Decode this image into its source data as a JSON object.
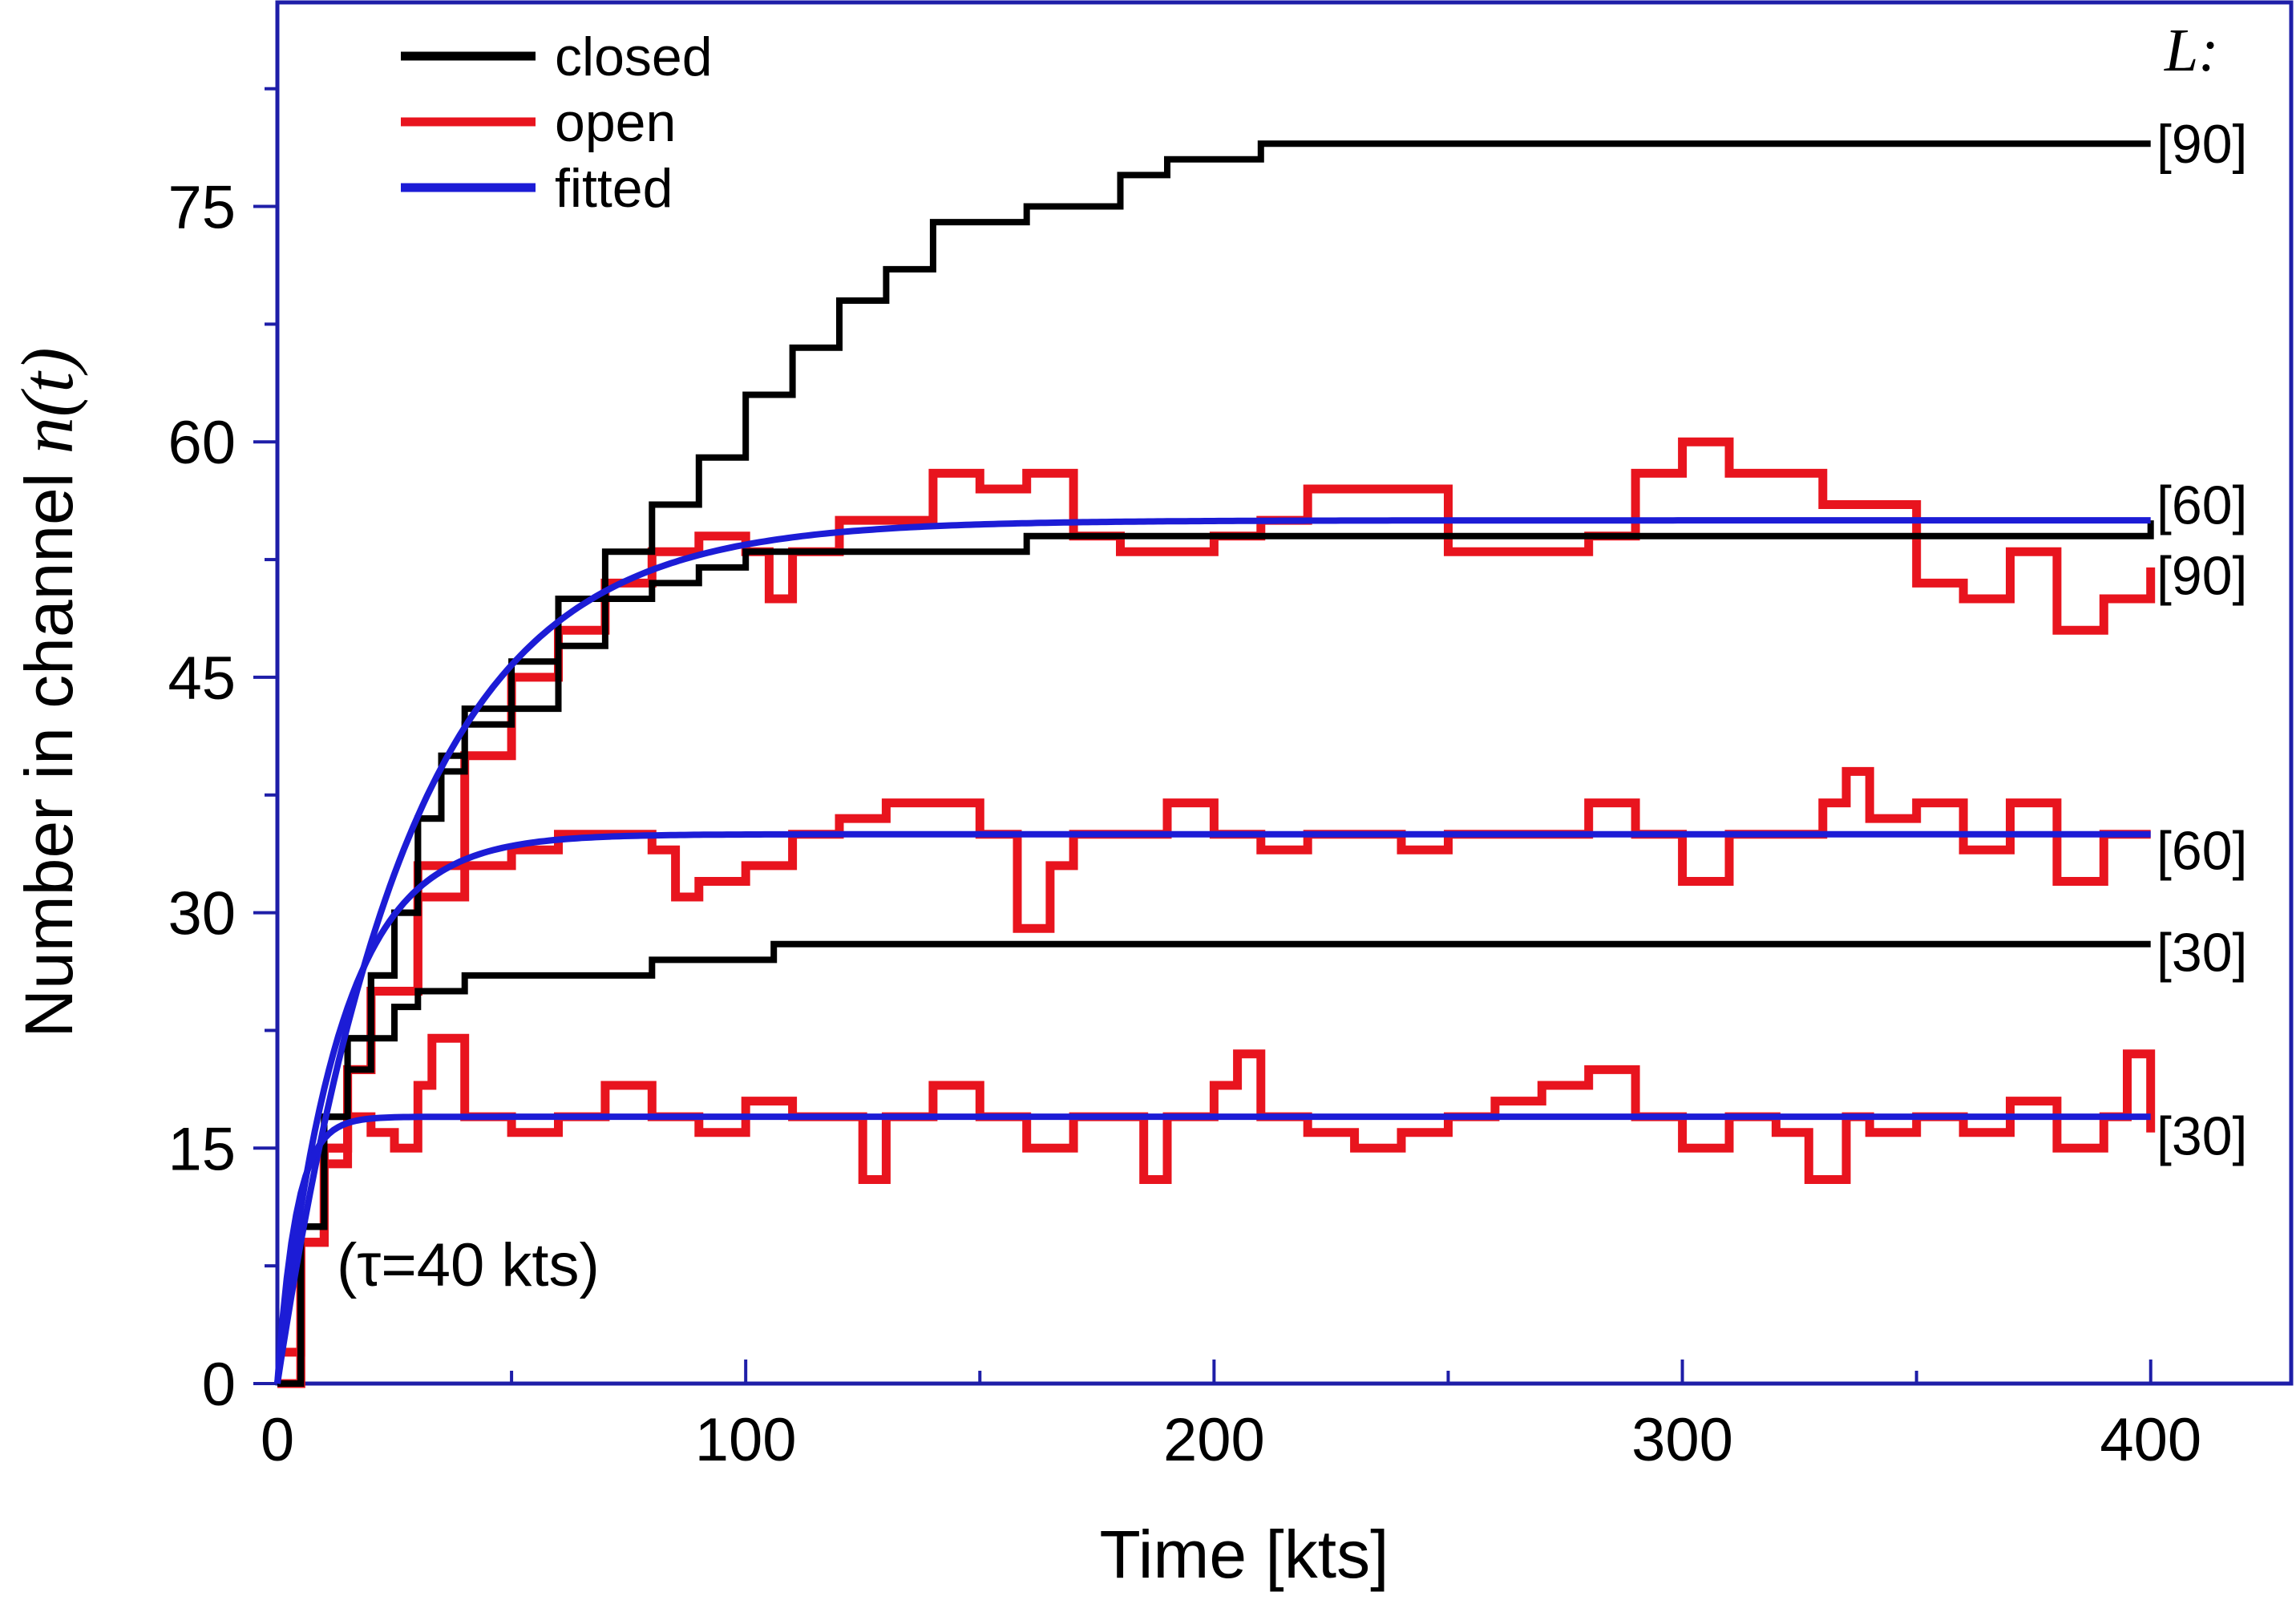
{
  "chart_data": {
    "type": "line",
    "title": "",
    "xlabel": "Time [kts]",
    "ylabel_prefix": "Number in channel ",
    "ylabel_math": "n(t)",
    "xlim": [
      0,
      430
    ],
    "ylim": [
      0,
      88
    ],
    "xticks": [
      0,
      100,
      200,
      300,
      400
    ],
    "xtick_labels": [
      "0",
      "100",
      "200",
      "300",
      "400"
    ],
    "yticks": [
      0,
      15,
      30,
      45,
      60,
      75
    ],
    "ytick_labels": [
      "0",
      "15",
      "30",
      "45",
      "60",
      "75"
    ],
    "annotation": "(τ=40 kts)",
    "labels_header": "L:",
    "grid": false,
    "legend_position": "top-left",
    "legend": [
      {
        "label": "closed",
        "color": "#000000"
      },
      {
        "label": "open",
        "color": "#e8141e"
      },
      {
        "label": "fitted",
        "color": "#1c1cd6"
      }
    ],
    "series": [
      {
        "name": "closed",
        "L": "[90]",
        "color": "#000000",
        "x": [
          0,
          5,
          10,
          15,
          20,
          25,
          30,
          35,
          40,
          50,
          60,
          70,
          80,
          90,
          100,
          110,
          120,
          130,
          140,
          150,
          160,
          170,
          180,
          190,
          200,
          210,
          400
        ],
        "y": [
          0,
          10,
          17,
          22,
          26,
          30,
          36,
          40,
          43,
          46,
          50,
          53,
          56,
          59,
          63,
          66,
          69,
          71,
          74,
          74,
          75,
          75,
          77,
          78,
          78,
          79,
          79
        ]
      },
      {
        "name": "closed",
        "L": "[60]",
        "color": "#000000",
        "x": [
          0,
          5,
          10,
          15,
          20,
          25,
          30,
          35,
          40,
          50,
          60,
          70,
          80,
          90,
          100,
          110,
          120,
          140,
          160,
          200,
          400
        ],
        "y": [
          0,
          10,
          17,
          22,
          26,
          30,
          36,
          39,
          42,
          43,
          47,
          50,
          51,
          52,
          53,
          53,
          53,
          53,
          54,
          54,
          55
        ]
      },
      {
        "name": "closed",
        "L": "[30]",
        "color": "#000000",
        "x": [
          0,
          5,
          10,
          15,
          20,
          25,
          30,
          40,
          60,
          80,
          100,
          106,
          400
        ],
        "y": [
          0,
          10,
          17,
          20,
          22,
          24,
          25,
          26,
          26,
          27,
          27,
          28,
          28
        ]
      },
      {
        "name": "open",
        "L": "[90]",
        "color": "#e8141e",
        "x": [
          0,
          5,
          10,
          15,
          20,
          30,
          40,
          50,
          60,
          70,
          80,
          90,
          100,
          105,
          110,
          120,
          130,
          140,
          150,
          160,
          170,
          180,
          190,
          200,
          210,
          220,
          230,
          240,
          250,
          260,
          270,
          280,
          290,
          300,
          310,
          320,
          330,
          340,
          350,
          360,
          370,
          380,
          390,
          400
        ],
        "y": [
          0,
          9,
          15,
          20,
          25,
          33,
          40,
          45,
          48,
          51,
          53,
          54,
          53,
          50,
          53,
          55,
          55,
          58,
          57,
          58,
          54,
          53,
          53,
          54,
          55,
          57,
          57,
          57,
          53,
          53,
          53,
          54,
          58,
          60,
          58,
          58,
          56,
          56,
          51,
          50,
          53,
          48,
          50,
          52
        ]
      },
      {
        "name": "open",
        "L": "[60]",
        "color": "#e8141e",
        "x": [
          0,
          5,
          10,
          15,
          20,
          30,
          40,
          50,
          60,
          70,
          80,
          85,
          90,
          100,
          110,
          120,
          130,
          140,
          150,
          158,
          165,
          170,
          180,
          190,
          200,
          210,
          220,
          230,
          240,
          250,
          260,
          270,
          280,
          290,
          300,
          310,
          320,
          330,
          335,
          340,
          350,
          360,
          370,
          380,
          390,
          400
        ],
        "y": [
          0,
          9,
          15,
          20,
          25,
          31,
          33,
          34,
          35,
          35,
          34,
          31,
          32,
          33,
          35,
          36,
          37,
          37,
          35,
          29,
          33,
          35,
          35,
          37,
          35,
          34,
          35,
          35,
          34,
          35,
          35,
          35,
          37,
          35,
          32,
          35,
          35,
          37,
          39,
          36,
          37,
          34,
          37,
          32,
          35,
          35
        ]
      },
      {
        "name": "open",
        "L": "[30]",
        "color": "#e8141e",
        "x": [
          0,
          5,
          10,
          15,
          20,
          25,
          30,
          33,
          40,
          50,
          60,
          70,
          80,
          90,
          100,
          110,
          120,
          125,
          130,
          140,
          150,
          160,
          170,
          180,
          185,
          190,
          200,
          205,
          210,
          220,
          230,
          240,
          250,
          260,
          270,
          280,
          290,
          300,
          310,
          320,
          327,
          335,
          340,
          350,
          360,
          370,
          380,
          390,
          395,
          400
        ],
        "y": [
          2,
          9,
          14,
          17,
          16,
          15,
          19,
          22,
          17,
          16,
          17,
          19,
          17,
          16,
          18,
          17,
          17,
          13,
          17,
          19,
          17,
          15,
          17,
          17,
          13,
          17,
          19,
          21,
          17,
          16,
          15,
          16,
          17,
          18,
          19,
          20,
          17,
          15,
          17,
          16,
          13,
          17,
          16,
          17,
          16,
          18,
          15,
          17,
          21,
          16
        ]
      }
    ],
    "fitted": [
      {
        "name": "fitted",
        "L": "[90]",
        "color": "#1c1cd6",
        "A": 55,
        "tau": 28
      },
      {
        "name": "fitted",
        "L": "[60]",
        "color": "#1c1cd6",
        "A": 35,
        "tau": 13
      },
      {
        "name": "fitted",
        "L": "[30]",
        "color": "#1c1cd6",
        "A": 17,
        "tau": 4
      }
    ],
    "series_labels": [
      {
        "text": "[90]",
        "y": 79
      },
      {
        "text": "[60]",
        "y": 56
      },
      {
        "text": "[90]",
        "y": 51.5
      },
      {
        "text": "[60]",
        "y": 34
      },
      {
        "text": "[30]",
        "y": 27.5
      },
      {
        "text": "[30]",
        "y": 15.8
      }
    ]
  }
}
